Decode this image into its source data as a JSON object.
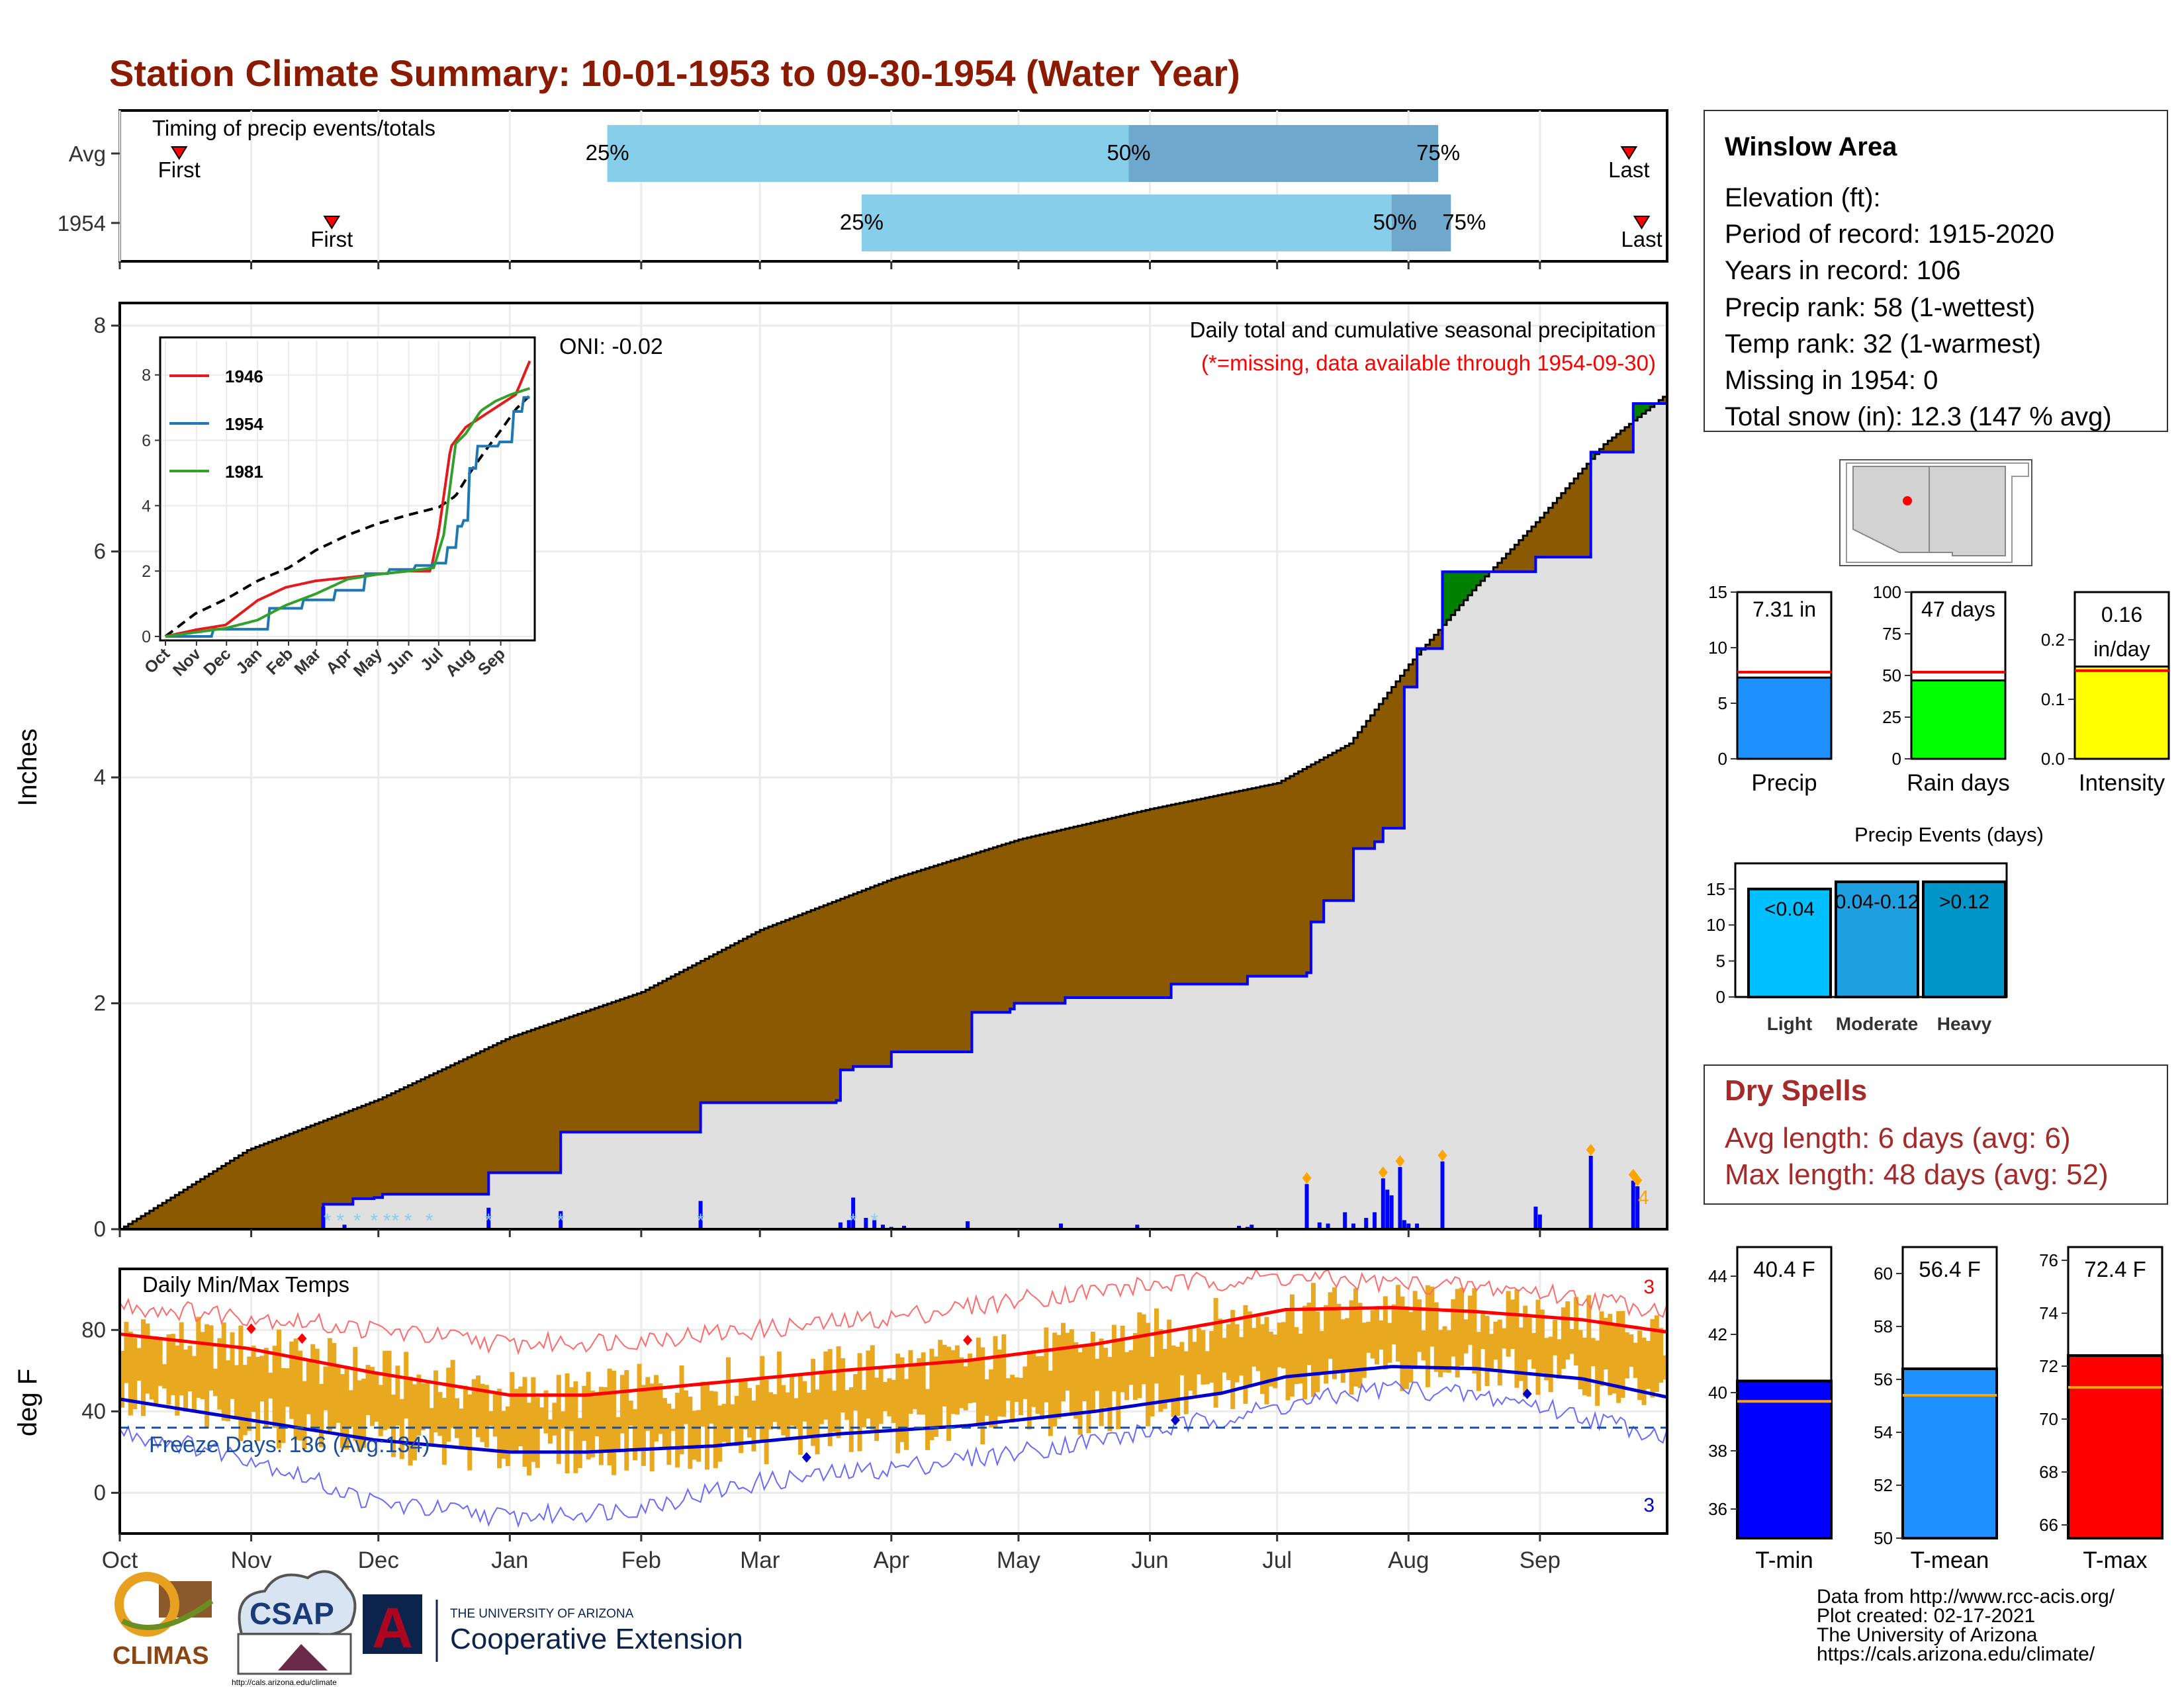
{
  "title": "Station Climate Summary: 10-01-1953 to 09-30-1954 (Water Year)",
  "colors": {
    "title": "#8b1a00",
    "precip_fill_deficit": "#8b5a00",
    "precip_fill_surplus": "#008000",
    "observed_line": "#0000ff",
    "normal_fill": "#e0e0e0",
    "quartile_light": "#87ceeb",
    "quartile_dark": "#6fa8cd",
    "temp_range": "#e8a820",
    "tmax_normal": "#ff0000",
    "tmin_normal": "#0000cd",
    "dry_spell_text": "#a52a2a"
  },
  "timing_panel": {
    "label": "Timing of precip events/totals",
    "rows": [
      {
        "name": "Avg",
        "first_label": "First",
        "last_label": "Last",
        "p25_label": "25%",
        "p50_label": "50%",
        "p75_label": "75%",
        "first_day": 14,
        "last_day": 356,
        "p25_day": 115,
        "p50_day": 238,
        "p75_day": 311
      },
      {
        "name": "1954",
        "first_label": "First",
        "last_label": "Last",
        "p25_label": "25%",
        "p50_label": "50%",
        "p75_label": "75%",
        "first_day": 50,
        "last_day": 359,
        "p25_day": 175,
        "p50_day": 300,
        "p75_day": 314
      }
    ]
  },
  "precip_panel": {
    "ylabel": "Inches",
    "yticks": [
      "0",
      "2",
      "4",
      "6",
      "8"
    ],
    "oni": "ONI: -0.02",
    "caption": "Daily total and cumulative seasonal precipitation",
    "missing_note": "(*=missing, data available through 1954-09-30)",
    "extreme_count": "4"
  },
  "inset": {
    "yticks": [
      "0",
      "2",
      "4",
      "6",
      "8"
    ],
    "xticks": [
      "Oct",
      "Nov",
      "Dec",
      "Jan",
      "Feb",
      "Mar",
      "Apr",
      "May",
      "Jun",
      "Jul",
      "Aug",
      "Sep"
    ],
    "legend": [
      "1946",
      "1954",
      "1981"
    ]
  },
  "temp_panel": {
    "ylabel": "deg F",
    "label": "Daily Min/Max Temps",
    "freeze_text": "Freeze Days: 136 (Avg:134)",
    "yticks": [
      "0",
      "40",
      "80"
    ],
    "record_high_count": "3",
    "record_low_count": "3"
  },
  "month_labels": [
    "Oct",
    "Nov",
    "Dec",
    "Jan",
    "Feb",
    "Mar",
    "Apr",
    "May",
    "Jun",
    "Jul",
    "Aug",
    "Sep"
  ],
  "station_box": {
    "name": "Winslow Area",
    "lines": [
      "Elevation (ft):",
      "Period of record: 1915-2020",
      "Years in record: 106",
      "Precip rank: 58 (1-wettest)",
      "Temp rank: 32 (1-warmest)",
      "Missing in 1954: 0",
      "Total snow (in): 12.3 (147 % avg)"
    ]
  },
  "mini_bars": [
    {
      "value_label": "7.31 in",
      "label": "Precip",
      "value": 7.31,
      "avg": 7.8,
      "max": 15,
      "ticks": [
        "0",
        "5",
        "10",
        "15"
      ],
      "color": "#1e90ff"
    },
    {
      "value_label": "47 days",
      "label": "Rain days",
      "value": 47,
      "avg": 52,
      "max": 100,
      "ticks": [
        "0",
        "25",
        "50",
        "75",
        "100"
      ],
      "color": "#00ff00"
    },
    {
      "value_label": "0.16 in/day",
      "label": "Intensity",
      "value": 0.155,
      "avg": 0.148,
      "max": 0.28,
      "ticks": [
        "0.0",
        "0.1",
        "0.2"
      ],
      "color": "#ffff00"
    }
  ],
  "precip_events": {
    "title": "Precip Events (days)",
    "ticks": [
      "0",
      "5",
      "10",
      "15"
    ],
    "bars": [
      {
        "label": "Light",
        "value_label": "<0.04",
        "value": 15,
        "color": "#00bfff"
      },
      {
        "label": "Moderate",
        "value_label": "0.04-0.12",
        "value": 16,
        "color": "#1ea0e0"
      },
      {
        "label": "Heavy",
        "value_label": ">0.12",
        "value": 16,
        "color": "#0095c8"
      }
    ]
  },
  "dry_spells": {
    "title": "Dry Spells",
    "avg_length": "Avg length: 6 days (avg: 6)",
    "max_length": "Max length: 48 days (avg: 52)"
  },
  "temp_bars": [
    {
      "value_label": "40.4 F",
      "label": "T-min",
      "value": 40.4,
      "avg": 39.7,
      "min": 35,
      "max": 45,
      "ticks": [
        "36",
        "38",
        "40",
        "42",
        "44"
      ],
      "color": "#0000ff"
    },
    {
      "value_label": "56.4 F",
      "label": "T-mean",
      "value": 56.4,
      "avg": 55.4,
      "min": 50,
      "max": 61,
      "ticks": [
        "50",
        "52",
        "54",
        "56",
        "58",
        "60"
      ],
      "color": "#1e90ff"
    },
    {
      "value_label": "72.4 F",
      "label": "T-max",
      "value": 72.4,
      "avg": 71.2,
      "min": 65.5,
      "max": 76.5,
      "ticks": [
        "66",
        "68",
        "70",
        "72",
        "74",
        "76"
      ],
      "color": "#ff0000"
    }
  ],
  "footer": {
    "lines": [
      "Data from http://www.rcc-acis.org/",
      "Plot created: 02-17-2021",
      "The University of Arizona",
      "https://cals.arizona.edu/climate/"
    ],
    "climas": "CLIMAS",
    "csap": "CSAP",
    "csap_url": "http://cals.arizona.edu/climate",
    "ua_small": "THE UNIVERSITY OF ARIZONA",
    "ua_big": "Cooperative Extension"
  },
  "chart_data": {
    "type": "area",
    "title": "Daily total and cumulative seasonal precipitation",
    "ylabel": "Inches",
    "ylim": [
      0,
      8.2
    ],
    "x_unit": "day of water year (Oct 1 = 0)",
    "normal_cumulative": {
      "x": [
        0,
        30,
        61,
        92,
        123,
        151,
        182,
        212,
        243,
        273,
        290,
        304,
        320,
        335,
        350,
        365
      ],
      "y": [
        0,
        0.7,
        1.15,
        1.7,
        2.1,
        2.65,
        3.1,
        3.45,
        3.72,
        3.95,
        4.3,
        5.0,
        5.7,
        6.3,
        6.95,
        7.4
      ]
    },
    "observed_cumulative": {
      "x": [
        0,
        47,
        48,
        55,
        60,
        62,
        86,
        87,
        103,
        104,
        136,
        137,
        169,
        170,
        172,
        173,
        181,
        182,
        200,
        201,
        210,
        211,
        222,
        223,
        248,
        249,
        266,
        267,
        280,
        281,
        283,
        284,
        290,
        291,
        295,
        296,
        297,
        298,
        302,
        303,
        304,
        306,
        311,
        312,
        333,
        334,
        346,
        347,
        356,
        357,
        365
      ],
      "y": [
        0,
        0,
        0.22,
        0.27,
        0.28,
        0.31,
        0.31,
        0.5,
        0.5,
        0.86,
        0.86,
        1.12,
        1.14,
        1.41,
        1.41,
        1.44,
        1.44,
        1.57,
        1.57,
        1.92,
        1.95,
        2.0,
        2.0,
        2.05,
        2.17,
        2.17,
        2.24,
        2.24,
        2.27,
        2.72,
        2.72,
        2.91,
        2.91,
        3.37,
        3.37,
        3.43,
        3.43,
        3.55,
        3.55,
        4.8,
        4.8,
        5.14,
        5.14,
        5.82,
        5.82,
        5.95,
        5.95,
        6.88,
        6.88,
        7.31,
        7.31
      ]
    },
    "daily_precip": {
      "x": [
        48,
        53,
        87,
        104,
        137,
        170,
        172,
        173,
        176,
        178,
        180,
        182,
        185,
        200,
        222,
        240,
        264,
        266,
        267,
        280,
        283,
        285,
        289,
        291,
        294,
        296,
        298,
        299,
        300,
        302,
        303,
        304,
        306,
        312,
        334,
        335,
        347,
        357,
        358
      ],
      "y": [
        0.2,
        0.04,
        0.19,
        0.16,
        0.25,
        0.06,
        0.08,
        0.28,
        0.1,
        0.08,
        0.04,
        0.02,
        0.03,
        0.07,
        0.05,
        0.04,
        0.03,
        0.02,
        0.04,
        0.4,
        0.06,
        0.05,
        0.15,
        0.05,
        0.1,
        0.15,
        0.45,
        0.35,
        0.3,
        0.55,
        0.08,
        0.05,
        0.05,
        0.6,
        0.2,
        0.13,
        0.65,
        0.43,
        0.38
      ]
    },
    "inset_series": [
      {
        "name": "1946",
        "x": [
          0,
          30,
          60,
          92,
          120,
          150,
          182,
          212,
          243,
          265,
          273,
          285,
          300,
          320,
          335,
          350,
          365
        ],
        "y": [
          0,
          0.2,
          0.35,
          1.1,
          1.5,
          1.7,
          1.8,
          1.9,
          2.0,
          2.0,
          3.2,
          5.8,
          6.4,
          6.8,
          7.1,
          7.4,
          8.5
        ]
      },
      {
        "name": "1954",
        "x": [
          0,
          47,
          104,
          137,
          170,
          200,
          223,
          249,
          267,
          281,
          291,
          298,
          304,
          312,
          334,
          347,
          357,
          365
        ],
        "y": [
          0,
          0.22,
          0.86,
          1.12,
          1.41,
          1.92,
          2.05,
          2.17,
          2.24,
          2.72,
          3.37,
          3.55,
          5.14,
          5.82,
          5.95,
          6.88,
          7.31,
          7.31
        ]
      },
      {
        "name": "1981",
        "x": [
          0,
          60,
          92,
          120,
          150,
          182,
          212,
          243,
          268,
          278,
          290,
          300,
          315,
          330,
          345,
          365
        ],
        "y": [
          0,
          0.25,
          0.5,
          0.95,
          1.3,
          1.75,
          1.9,
          2.0,
          2.1,
          3.1,
          5.9,
          6.2,
          6.9,
          7.2,
          7.4,
          7.6
        ]
      }
    ],
    "inset_normal": {
      "name": "Average",
      "x": [
        0,
        30,
        61,
        92,
        123,
        151,
        182,
        212,
        243,
        273,
        290,
        304,
        320,
        335,
        350,
        365
      ],
      "y": [
        0,
        0.7,
        1.15,
        1.7,
        2.1,
        2.65,
        3.1,
        3.45,
        3.72,
        3.95,
        4.3,
        5.0,
        5.7,
        6.3,
        6.95,
        7.4
      ]
    },
    "temperature": {
      "ylim": [
        -20,
        110
      ],
      "freeze_threshold": 32,
      "normal_max": {
        "x": [
          0,
          30,
          60,
          92,
          110,
          140,
          170,
          200,
          230,
          260,
          275,
          300,
          320,
          345,
          365
        ],
        "y": [
          78,
          71,
          59,
          48,
          48,
          54,
          60,
          65,
          73,
          84,
          90,
          91,
          89,
          85,
          79
        ]
      },
      "normal_min": {
        "x": [
          0,
          30,
          60,
          92,
          110,
          140,
          170,
          200,
          230,
          260,
          275,
          300,
          320,
          345,
          365
        ],
        "y": [
          46,
          36,
          26,
          20,
          20,
          23,
          29,
          33,
          40,
          49,
          57,
          62,
          61,
          56,
          47
        ]
      },
      "record_max": {
        "x": [
          0,
          30,
          60,
          92,
          120,
          150,
          182,
          212,
          243,
          273,
          300,
          330,
          365
        ],
        "y": [
          92,
          87,
          80,
          73,
          75,
          80,
          86,
          95,
          102,
          106,
          103,
          100,
          90
        ]
      },
      "record_min": {
        "x": [
          0,
          30,
          60,
          92,
          120,
          150,
          182,
          212,
          243,
          273,
          300,
          330,
          365
        ],
        "y": [
          30,
          18,
          -5,
          -12,
          -8,
          5,
          12,
          20,
          30,
          42,
          52,
          45,
          28
        ]
      },
      "record_high_days": [
        31,
        43,
        200
      ],
      "record_low_days": [
        162,
        249,
        332
      ]
    }
  }
}
